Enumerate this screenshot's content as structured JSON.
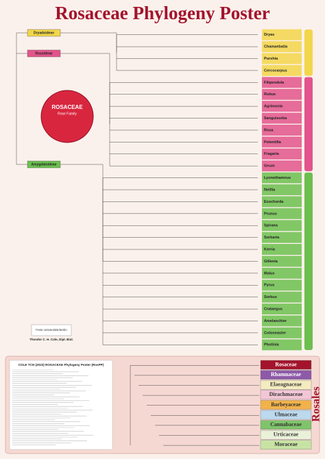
{
  "header": {
    "title": "Rosaceae Phylogeny Poster"
  },
  "subfamilies": [
    {
      "name": "Dryadoideae",
      "color": "#f2d64b",
      "genera": [
        "Dryas",
        "Chamaebatia",
        "Purshia",
        "Cercocarpus"
      ]
    },
    {
      "name": "Rosoideae",
      "color": "#e2558b",
      "genera": [
        "Filipendula",
        "Rubus",
        "Agrimonia",
        "Sanguisorba",
        "Rosa",
        "Potentilla",
        "Fragaria",
        "Geum"
      ]
    },
    {
      "name": "Amygdaloideae",
      "color": "#6cbf4f",
      "genera": [
        "Lyonothamnus",
        "Neillia",
        "Exochorda",
        "Prunus",
        "Spiraea",
        "Sorbaria",
        "Kerria",
        "Gillenia",
        "Malus",
        "Pyrus",
        "Sorbus",
        "Crataegus",
        "Amelanchier",
        "Cotoneaster",
        "Photinia"
      ]
    }
  ],
  "family_circle": {
    "name": "ROSACEAE",
    "common": "Rose Family"
  },
  "author": {
    "university": "Freie Universität Berlin",
    "name": "Theodor C. H. Cole, Dipl. Biol."
  },
  "order_panel": {
    "citation": "COLE TCH (2023) ROSACEAE Phylogeny Poster (RosPP)",
    "order": "Rosales",
    "families": [
      {
        "name": "Rosaceae",
        "color": "#a3142c",
        "text": "#ffffff"
      },
      {
        "name": "Rhamnaceae",
        "color": "#8d5aa8",
        "text": "#ffffff"
      },
      {
        "name": "Elaeagnaceae",
        "color": "#f4ecc0",
        "text": "#333333"
      },
      {
        "name": "Dirachmaceae",
        "color": "#f3c6d6",
        "text": "#333333"
      },
      {
        "name": "Barbeyaceae",
        "color": "#f2b24a",
        "text": "#333333"
      },
      {
        "name": "Ulmaceae",
        "color": "#bcd9ee",
        "text": "#333333"
      },
      {
        "name": "Cannabaceae",
        "color": "#7fc46a",
        "text": "#333333"
      },
      {
        "name": "Urticaceae",
        "color": "#e9f1d8",
        "text": "#333333"
      },
      {
        "name": "Moraceae",
        "color": "#c7e3a4",
        "text": "#333333"
      }
    ]
  }
}
